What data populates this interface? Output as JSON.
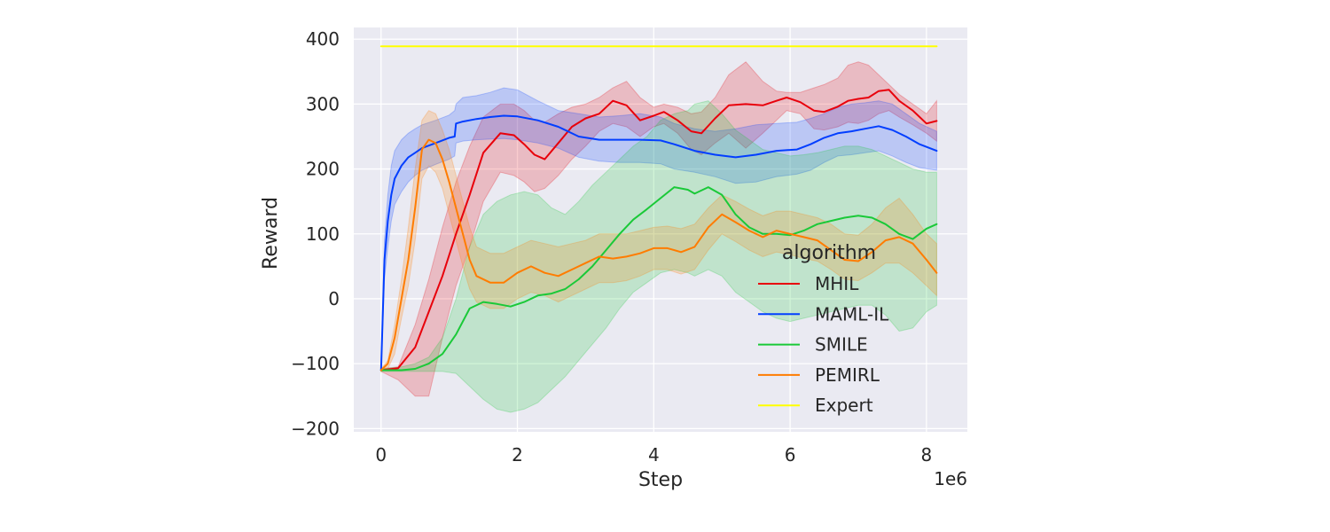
{
  "chart_data": {
    "type": "line",
    "xlabel": "Step",
    "ylabel": "Reward",
    "x_offset_text": "1e6",
    "xlim": [
      -0.4,
      8.6
    ],
    "ylim": [
      -205,
      418
    ],
    "xticks": [
      0,
      2,
      4,
      6,
      8
    ],
    "yticks": [
      -200,
      -100,
      0,
      100,
      200,
      300,
      400
    ],
    "xtick_labels": [
      "0",
      "2",
      "4",
      "6",
      "8"
    ],
    "ytick_labels": [
      "−200",
      "−100",
      "0",
      "100",
      "200",
      "300",
      "400"
    ],
    "grid": true,
    "background": "#eaeaf2",
    "legend": {
      "title": "algorithm",
      "placement": "lower-right"
    },
    "series": [
      {
        "name": "MHIL",
        "color": "#e8000b",
        "x": [
          0,
          0.25,
          0.5,
          0.7,
          0.9,
          1.1,
          1.3,
          1.5,
          1.75,
          1.95,
          2.1,
          2.25,
          2.4,
          2.6,
          2.8,
          3.0,
          3.2,
          3.4,
          3.6,
          3.8,
          4.0,
          4.15,
          4.35,
          4.55,
          4.7,
          4.9,
          5.1,
          5.35,
          5.6,
          5.8,
          5.95,
          6.15,
          6.35,
          6.5,
          6.7,
          6.85,
          7.0,
          7.15,
          7.3,
          7.45,
          7.6,
          7.8,
          8.0,
          8.15
        ],
        "y": [
          -110,
          -107,
          -75,
          -20,
          35,
          100,
          160,
          225,
          255,
          252,
          238,
          222,
          215,
          240,
          265,
          278,
          285,
          305,
          298,
          275,
          282,
          288,
          275,
          258,
          255,
          278,
          298,
          300,
          298,
          305,
          310,
          303,
          290,
          288,
          296,
          305,
          308,
          310,
          320,
          322,
          305,
          290,
          270,
          274
        ],
        "upper": [
          -108,
          -105,
          -40,
          30,
          110,
          180,
          235,
          280,
          300,
          300,
          290,
          275,
          272,
          285,
          295,
          300,
          310,
          325,
          335,
          310,
          295,
          300,
          295,
          285,
          288,
          310,
          345,
          365,
          335,
          320,
          318,
          318,
          325,
          330,
          340,
          360,
          365,
          360,
          345,
          330,
          315,
          300,
          285,
          305
        ],
        "lower": [
          -112,
          -125,
          -150,
          -150,
          -60,
          20,
          80,
          150,
          195,
          190,
          180,
          165,
          170,
          190,
          215,
          235,
          258,
          270,
          265,
          250,
          265,
          270,
          255,
          230,
          222,
          240,
          255,
          232,
          255,
          275,
          290,
          285,
          262,
          260,
          265,
          272,
          270,
          275,
          285,
          290,
          280,
          268,
          255,
          243
        ]
      },
      {
        "name": "MAML-IL",
        "color": "#023eff",
        "x": [
          0,
          0.05,
          0.1,
          0.15,
          0.2,
          0.3,
          0.4,
          0.5,
          0.6,
          0.8,
          1.0,
          1.08,
          1.1,
          1.2,
          1.4,
          1.6,
          1.8,
          2.0,
          2.3,
          2.6,
          2.9,
          3.2,
          3.5,
          3.8,
          4.1,
          4.3,
          4.6,
          4.9,
          5.2,
          5.5,
          5.8,
          6.1,
          6.3,
          6.5,
          6.7,
          6.9,
          7.1,
          7.3,
          7.5,
          7.7,
          7.9,
          8.15
        ],
        "y": [
          -110,
          60,
          120,
          160,
          185,
          205,
          218,
          225,
          232,
          240,
          248,
          250,
          270,
          273,
          277,
          280,
          282,
          281,
          275,
          265,
          250,
          245,
          245,
          245,
          244,
          238,
          228,
          222,
          218,
          222,
          228,
          230,
          238,
          248,
          255,
          258,
          262,
          266,
          260,
          250,
          238,
          228
        ],
        "upper": [
          -108,
          90,
          160,
          205,
          228,
          245,
          255,
          262,
          268,
          275,
          283,
          290,
          300,
          310,
          313,
          318,
          325,
          322,
          305,
          290,
          285,
          280,
          282,
          285,
          280,
          270,
          262,
          258,
          262,
          268,
          270,
          272,
          278,
          285,
          295,
          300,
          302,
          305,
          300,
          285,
          270,
          258
        ],
        "lower": [
          -112,
          30,
          80,
          120,
          145,
          165,
          180,
          190,
          198,
          207,
          215,
          220,
          240,
          243,
          245,
          246,
          247,
          245,
          240,
          232,
          218,
          212,
          210,
          210,
          208,
          200,
          195,
          188,
          178,
          180,
          188,
          192,
          198,
          210,
          220,
          222,
          225,
          228,
          220,
          210,
          202,
          198
        ]
      },
      {
        "name": "SMILE",
        "color": "#1ac938",
        "x": [
          0,
          0.3,
          0.5,
          0.7,
          0.9,
          1.1,
          1.3,
          1.5,
          1.7,
          1.9,
          2.1,
          2.3,
          2.5,
          2.7,
          2.9,
          3.1,
          3.3,
          3.5,
          3.7,
          3.9,
          4.1,
          4.3,
          4.5,
          4.6,
          4.8,
          5.0,
          5.2,
          5.4,
          5.6,
          5.8,
          6.0,
          6.2,
          6.4,
          6.6,
          6.8,
          7.0,
          7.2,
          7.4,
          7.6,
          7.8,
          8.0,
          8.15
        ],
        "y": [
          -110,
          -110,
          -108,
          -100,
          -85,
          -55,
          -15,
          -5,
          -8,
          -12,
          -5,
          5,
          8,
          15,
          30,
          50,
          75,
          100,
          122,
          138,
          155,
          172,
          168,
          162,
          172,
          160,
          130,
          110,
          100,
          100,
          98,
          105,
          115,
          120,
          125,
          128,
          125,
          115,
          100,
          92,
          108,
          115
        ],
        "upper": [
          -108,
          -105,
          -100,
          -90,
          -60,
          0,
          80,
          130,
          150,
          160,
          165,
          160,
          140,
          130,
          150,
          175,
          195,
          215,
          235,
          250,
          275,
          285,
          290,
          300,
          305,
          285,
          260,
          245,
          230,
          225,
          220,
          222,
          225,
          230,
          235,
          235,
          230,
          220,
          210,
          200,
          195,
          195
        ],
        "lower": [
          -112,
          -112,
          -112,
          -112,
          -112,
          -115,
          -135,
          -155,
          -170,
          -175,
          -170,
          -160,
          -140,
          -120,
          -95,
          -70,
          -45,
          -15,
          10,
          25,
          40,
          45,
          40,
          35,
          45,
          35,
          10,
          -5,
          -20,
          -30,
          -35,
          -30,
          -25,
          -20,
          -15,
          -10,
          -10,
          -25,
          -50,
          -45,
          -20,
          -10
        ]
      },
      {
        "name": "PEMIRL",
        "color": "#ff7c00",
        "x": [
          0,
          0.1,
          0.2,
          0.3,
          0.4,
          0.5,
          0.6,
          0.7,
          0.8,
          0.9,
          1.0,
          1.1,
          1.2,
          1.3,
          1.4,
          1.6,
          1.8,
          2.0,
          2.2,
          2.4,
          2.6,
          2.8,
          3.0,
          3.2,
          3.4,
          3.6,
          3.8,
          4.0,
          4.2,
          4.4,
          4.6,
          4.8,
          5.0,
          5.2,
          5.4,
          5.6,
          5.8,
          6.0,
          6.2,
          6.4,
          6.6,
          6.8,
          7.0,
          7.2,
          7.4,
          7.6,
          7.8,
          8.0,
          8.15
        ],
        "y": [
          -110,
          -100,
          -60,
          0,
          60,
          140,
          230,
          245,
          240,
          215,
          180,
          140,
          100,
          60,
          35,
          25,
          25,
          40,
          50,
          40,
          35,
          45,
          55,
          65,
          62,
          65,
          70,
          78,
          78,
          72,
          80,
          110,
          130,
          118,
          105,
          95,
          105,
          100,
          95,
          90,
          75,
          60,
          58,
          72,
          90,
          95,
          85,
          60,
          40
        ],
        "upper": [
          -108,
          -95,
          -40,
          30,
          110,
          200,
          275,
          290,
          285,
          260,
          230,
          190,
          150,
          110,
          80,
          70,
          70,
          80,
          90,
          85,
          80,
          85,
          90,
          100,
          100,
          100,
          105,
          110,
          112,
          108,
          115,
          140,
          160,
          150,
          138,
          128,
          135,
          135,
          130,
          125,
          115,
          100,
          98,
          115,
          140,
          155,
          130,
          100,
          85
        ],
        "lower": [
          -112,
          -108,
          -85,
          -30,
          20,
          90,
          185,
          205,
          195,
          170,
          130,
          90,
          50,
          15,
          -5,
          -15,
          -15,
          0,
          10,
          5,
          -5,
          5,
          15,
          25,
          25,
          28,
          35,
          45,
          45,
          38,
          45,
          75,
          100,
          88,
          75,
          65,
          72,
          68,
          62,
          58,
          45,
          30,
          28,
          40,
          55,
          55,
          40,
          20,
          5
        ]
      },
      {
        "name": "Expert",
        "color": "#ffff00",
        "x": [
          0,
          8.15
        ],
        "y": [
          389,
          389
        ]
      }
    ]
  }
}
